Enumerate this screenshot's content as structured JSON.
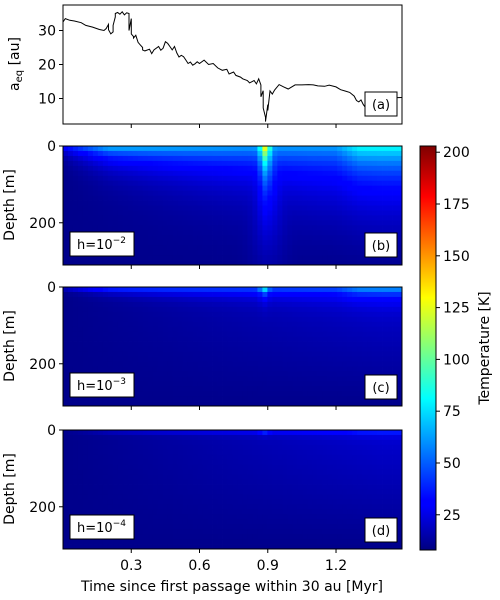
{
  "chart_data": [
    {
      "type": "line",
      "panel_label": "(a)",
      "ylabel": "a",
      "ylabel_sub": "eq",
      "ylabel_unit": " [au]",
      "xlim": [
        0,
        1.49
      ],
      "ylim": [
        2.5,
        37.5
      ],
      "yticks": [
        10,
        20,
        30
      ],
      "xticks": [
        0.3,
        0.6,
        0.9,
        1.2
      ],
      "series": [
        {
          "x": [
            0.0,
            0.01,
            0.03,
            0.05,
            0.08,
            0.1,
            0.13,
            0.16,
            0.18,
            0.19,
            0.2,
            0.2,
            0.21,
            0.22,
            0.22,
            0.23,
            0.23,
            0.24,
            0.25,
            0.26,
            0.27,
            0.28,
            0.29,
            0.29,
            0.3,
            0.3,
            0.31,
            0.31,
            0.32,
            0.33,
            0.34,
            0.35,
            0.35,
            0.36,
            0.38,
            0.39,
            0.4,
            0.42,
            0.43,
            0.44,
            0.45,
            0.46,
            0.47,
            0.48,
            0.49,
            0.5,
            0.51,
            0.52,
            0.53,
            0.54,
            0.55,
            0.56,
            0.57,
            0.58,
            0.59,
            0.6,
            0.62,
            0.64,
            0.66,
            0.68,
            0.7,
            0.72,
            0.73,
            0.75,
            0.76,
            0.78,
            0.79,
            0.81,
            0.82,
            0.84,
            0.85,
            0.86,
            0.87,
            0.87,
            0.88,
            0.88,
            0.89,
            0.89,
            0.9,
            0.9,
            0.91,
            0.92,
            0.93,
            0.95,
            0.97,
            0.99,
            1.02,
            1.05,
            1.08,
            1.1,
            1.12,
            1.15,
            1.17,
            1.2,
            1.22,
            1.24,
            1.26,
            1.28,
            1.29,
            1.3,
            1.31,
            1.32,
            1.33,
            1.34,
            1.36,
            1.4,
            1.45,
            1.49
          ],
          "y": [
            32.5,
            33.5,
            33.0,
            32.8,
            32.3,
            31.5,
            31.0,
            30.3,
            30.0,
            30.6,
            31.8,
            30.2,
            29.0,
            29.6,
            31.5,
            34.0,
            35.0,
            35.3,
            34.8,
            35.5,
            34.6,
            35.2,
            35.0,
            30.0,
            33.5,
            29.0,
            28.2,
            27.8,
            28.6,
            26.5,
            25.7,
            25.0,
            24.3,
            24.0,
            24.5,
            23.2,
            24.3,
            25.3,
            24.2,
            24.8,
            26.7,
            26.2,
            25.3,
            24.3,
            25.3,
            23.4,
            22.2,
            22.7,
            22.3,
            21.3,
            20.3,
            20.7,
            19.8,
            20.2,
            20.8,
            20.3,
            21.3,
            20.0,
            20.3,
            19.0,
            18.3,
            18.6,
            17.2,
            17.8,
            16.8,
            16.3,
            15.8,
            15.3,
            14.6,
            15.3,
            14.3,
            15.8,
            14.0,
            10.5,
            12.3,
            7.2,
            4.5,
            3.2,
            8.2,
            6.5,
            12.2,
            11.3,
            12.5,
            14.1,
            13.4,
            12.8,
            14.0,
            14.0,
            14.1,
            14.0,
            13.7,
            13.6,
            13.9,
            13.4,
            12.6,
            12.2,
            11.8,
            10.7,
            9.4,
            9.0,
            9.6,
            8.2,
            7.3,
            8.5,
            10.2,
            10.1,
            10.2,
            10.3
          ]
        }
      ]
    },
    {
      "type": "heatmap",
      "panel_label": "(b)",
      "h_label": "h=10",
      "h_exp": "−2",
      "ylabel": "Depth [m]",
      "ylim": [
        0,
        310
      ],
      "yticks": [
        0,
        200
      ],
      "xticks": [
        0.3,
        0.6,
        0.9,
        1.2
      ]
    },
    {
      "type": "heatmap",
      "panel_label": "(c)",
      "h_label": "h=10",
      "h_exp": "−3",
      "ylabel": "Depth [m]",
      "ylim": [
        0,
        310
      ],
      "yticks": [
        0,
        200
      ],
      "xticks": [
        0.3,
        0.6,
        0.9,
        1.2
      ]
    },
    {
      "type": "heatmap",
      "panel_label": "(d)",
      "h_label": "h=10",
      "h_exp": "−4",
      "ylabel": "Depth [m]",
      "ylim": [
        0,
        310
      ],
      "yticks": [
        0,
        200
      ],
      "xticks": [
        0.3,
        0.6,
        0.9,
        1.2
      ],
      "xtick_labels": [
        "0.3",
        "0.6",
        "0.9",
        "1.2"
      ],
      "xlabel": "Time since first passage within 30 au [Myr]"
    }
  ],
  "colorbar": {
    "label": "Temperature [K]",
    "range": [
      8,
      203
    ],
    "ticks": [
      25,
      50,
      75,
      100,
      125,
      150,
      175,
      200
    ],
    "colormap": "jet"
  }
}
